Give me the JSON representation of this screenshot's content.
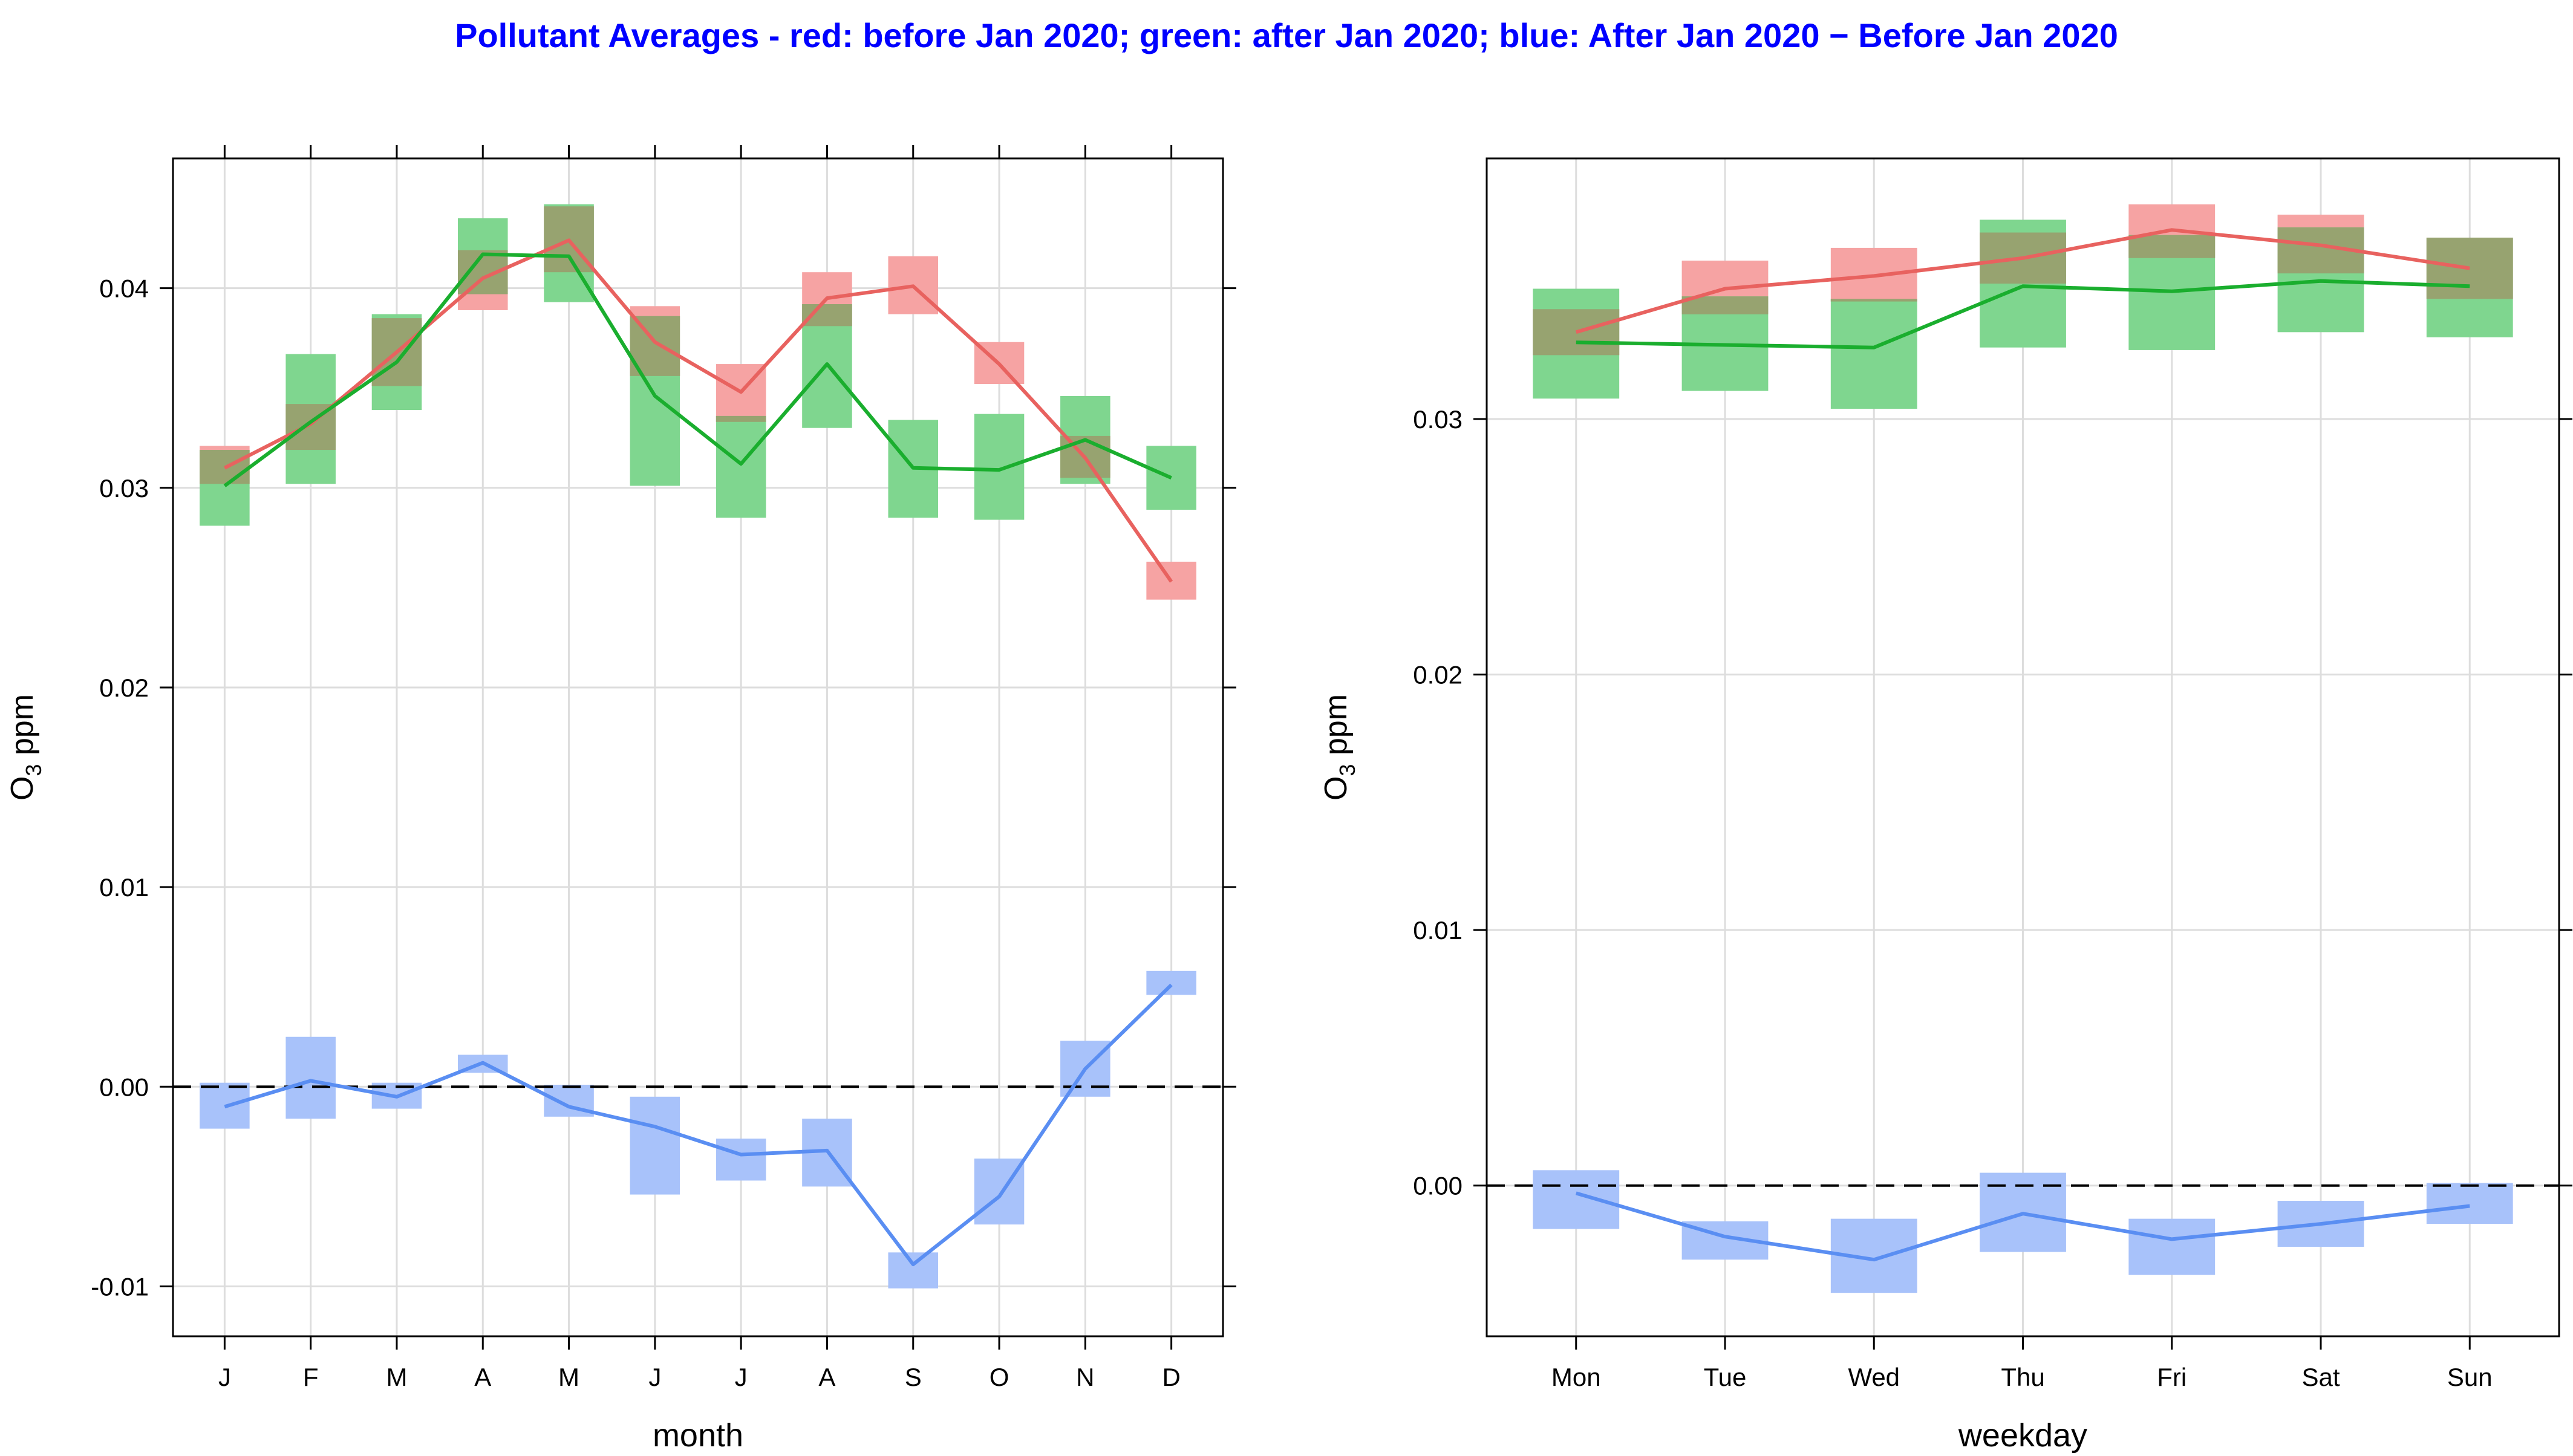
{
  "title": "Pollutant Averages - red: before Jan 2020; green: after Jan 2020; blue: After Jan 2020 − Before Jan 2020",
  "colors": {
    "before": "#e8625f",
    "after": "#1aae2e",
    "diff": "#5a8ef2",
    "before_band": "#f6a3a3",
    "after_band": "#7fd68f",
    "diff_band": "#a8c2fa",
    "overlap": "#9b9a6b",
    "grid": "#dddddd",
    "title": "#0000ff"
  },
  "chart_data": [
    {
      "type": "line",
      "panel": "month",
      "xlabel": "month",
      "ylabel_base": "O",
      "ylabel_sub": "3",
      "ylabel_unit": " ppm",
      "categories": [
        "J",
        "F",
        "M",
        "A",
        "M",
        "J",
        "J",
        "A",
        "S",
        "O",
        "N",
        "D"
      ],
      "ylim": [
        -0.0125,
        0.0465
      ],
      "yticks": [
        -0.01,
        0.0,
        0.01,
        0.02,
        0.03,
        0.04
      ],
      "ytick_labels": [
        "-0.01",
        "0.00",
        "0.01",
        "0.02",
        "0.03",
        "0.04"
      ],
      "reference_line": 0.0,
      "series": [
        {
          "name": "before Jan 2020",
          "key": "before",
          "values": [
            0.031,
            0.0332,
            0.0368,
            0.0405,
            0.0424,
            0.0373,
            0.0348,
            0.0395,
            0.0401,
            0.0362,
            0.0315,
            0.0253
          ],
          "lower": [
            0.0302,
            0.0319,
            0.0351,
            0.0389,
            0.0408,
            0.0356,
            0.0333,
            0.0381,
            0.0387,
            0.0352,
            0.0305,
            0.0244
          ],
          "upper": [
            0.0321,
            0.0342,
            0.0385,
            0.0419,
            0.0441,
            0.0391,
            0.0362,
            0.0408,
            0.0416,
            0.0373,
            0.0326,
            0.0263
          ]
        },
        {
          "name": "after Jan 2020",
          "key": "after",
          "values": [
            0.0301,
            0.0333,
            0.0363,
            0.0417,
            0.0416,
            0.0346,
            0.0312,
            0.0362,
            0.031,
            0.0309,
            0.0324,
            0.0305
          ],
          "lower": [
            0.0281,
            0.0302,
            0.0339,
            0.0397,
            0.0393,
            0.0301,
            0.0285,
            0.033,
            0.0285,
            0.0284,
            0.0302,
            0.0289
          ],
          "upper": [
            0.0319,
            0.0367,
            0.0387,
            0.0435,
            0.0442,
            0.0386,
            0.0336,
            0.0392,
            0.0334,
            0.0337,
            0.0346,
            0.0321
          ]
        },
        {
          "name": "After Jan 2020 − Before Jan 2020",
          "key": "diff",
          "values": [
            -0.001,
            0.0003,
            -0.0005,
            0.0012,
            -0.001,
            -0.002,
            -0.0034,
            -0.0032,
            -0.0089,
            -0.0055,
            0.0009,
            0.0051
          ],
          "lower": [
            -0.0021,
            -0.0016,
            -0.0011,
            0.0007,
            -0.0015,
            -0.0054,
            -0.0047,
            -0.005,
            -0.0101,
            -0.0069,
            -0.0005,
            0.0046
          ],
          "upper": [
            0.0002,
            0.0025,
            0.0002,
            0.0016,
            0.0001,
            -0.0005,
            -0.0026,
            -0.0016,
            -0.0083,
            -0.0036,
            0.0023,
            0.0058
          ]
        }
      ]
    },
    {
      "type": "line",
      "panel": "weekday",
      "xlabel": "weekday",
      "ylabel_base": "O",
      "ylabel_sub": "3",
      "ylabel_unit": " ppm",
      "categories": [
        "Mon",
        "Tue",
        "Wed",
        "Thu",
        "Fri",
        "Sat",
        "Sun"
      ],
      "ylim": [
        -0.0059,
        0.0402
      ],
      "yticks": [
        0.0,
        0.01,
        0.02,
        0.03
      ],
      "ytick_labels": [
        "0.00",
        "0.01",
        "0.02",
        "0.03"
      ],
      "reference_line": 0.0,
      "series": [
        {
          "name": "before Jan 2020",
          "key": "before",
          "values": [
            0.0334,
            0.0351,
            0.0356,
            0.0363,
            0.0374,
            0.0368,
            0.0359
          ],
          "lower": [
            0.0325,
            0.0341,
            0.0346,
            0.0353,
            0.0363,
            0.0357,
            0.0347
          ],
          "upper": [
            0.0343,
            0.0362,
            0.0367,
            0.0373,
            0.0384,
            0.038,
            0.0371
          ]
        },
        {
          "name": "after Jan 2020",
          "key": "after",
          "values": [
            0.033,
            0.0329,
            0.0328,
            0.0352,
            0.035,
            0.0354,
            0.0352
          ],
          "lower": [
            0.0308,
            0.0311,
            0.0304,
            0.0328,
            0.0327,
            0.0334,
            0.0332
          ],
          "upper": [
            0.0351,
            0.0348,
            0.0347,
            0.0378,
            0.0372,
            0.0375,
            0.0371
          ]
        },
        {
          "name": "After Jan 2020 − Before Jan 2020",
          "key": "diff",
          "values": [
            -0.0003,
            -0.002,
            -0.0029,
            -0.0011,
            -0.0021,
            -0.0015,
            -0.0008
          ],
          "lower": [
            -0.0017,
            -0.0029,
            -0.0042,
            -0.0026,
            -0.0035,
            -0.0024,
            -0.0015
          ],
          "upper": [
            0.0006,
            -0.0014,
            -0.0013,
            0.0005,
            -0.0013,
            -0.0006,
            0.0001
          ]
        }
      ]
    }
  ]
}
